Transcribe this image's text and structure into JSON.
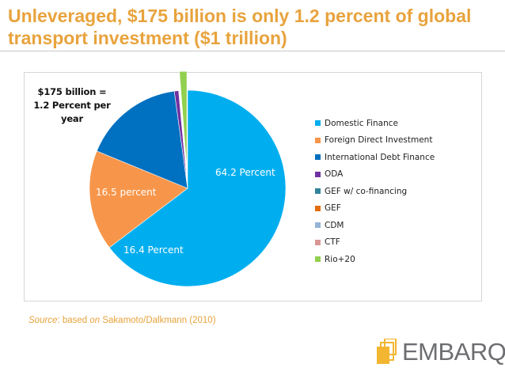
{
  "slide": {
    "title": "Unleveraged, $175 billion is only 1.2 percent of global transport investment ($1 trillion)",
    "source_prefix": "Source",
    "source_mid": ": based ",
    "source_on": "on",
    "source_ref": " Sakamoto/Dalkmann (2010)",
    "logo_text": "EMBARQ"
  },
  "chart_data": {
    "type": "pie",
    "title": "",
    "slices": [
      {
        "name": "Domestic Finance",
        "value": 64.2,
        "color": "#00aeef",
        "label": "64.2 Percent"
      },
      {
        "name": "Foreign Direct Investment",
        "value": 16.4,
        "color": "#f7964a",
        "label": "16.4 Percent"
      },
      {
        "name": "International Debt Finance",
        "value": 16.5,
        "color": "#0070c0",
        "label": "16.5 percent"
      },
      {
        "name": "ODA",
        "value": 0.7,
        "color": "#7030a0",
        "label": ""
      },
      {
        "name": "GEF w/ co-financing",
        "value": 0.1,
        "color": "#31849b",
        "label": ""
      },
      {
        "name": "GEF",
        "value": 0.05,
        "color": "#e46c0a",
        "label": ""
      },
      {
        "name": "CDM",
        "value": 0.05,
        "color": "#95b3d7",
        "label": ""
      },
      {
        "name": "CTF",
        "value": 0.05,
        "color": "#d99694",
        "label": ""
      },
      {
        "name": "Rio+20",
        "value": 1.2,
        "color": "#92d050",
        "label": "",
        "exploded": true
      }
    ],
    "callout": "$175 billion = 1.2 Percent per year",
    "legend_position": "right"
  }
}
